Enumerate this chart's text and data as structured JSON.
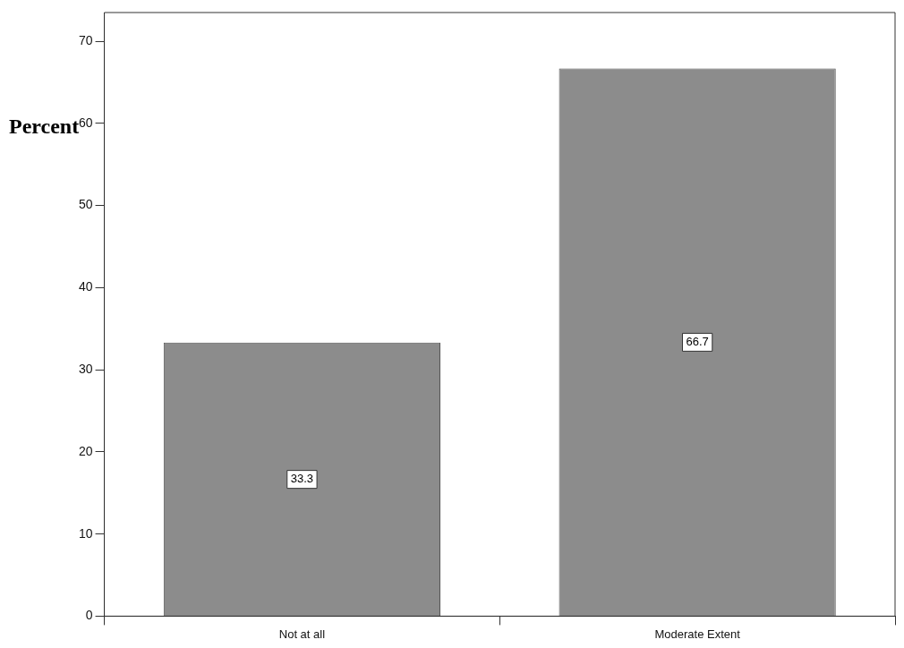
{
  "chart_data": {
    "type": "bar",
    "ylabel": "Percent",
    "categories": [
      "Not at all",
      "Moderate Extent"
    ],
    "values": [
      33.3,
      66.7
    ],
    "color": "#8c8c8c",
    "ylim": [
      0,
      73.5
    ],
    "yticks": [
      0,
      10,
      20,
      30,
      40,
      50,
      60,
      70
    ],
    "data_labels": true,
    "grid": false,
    "legend": false
  }
}
